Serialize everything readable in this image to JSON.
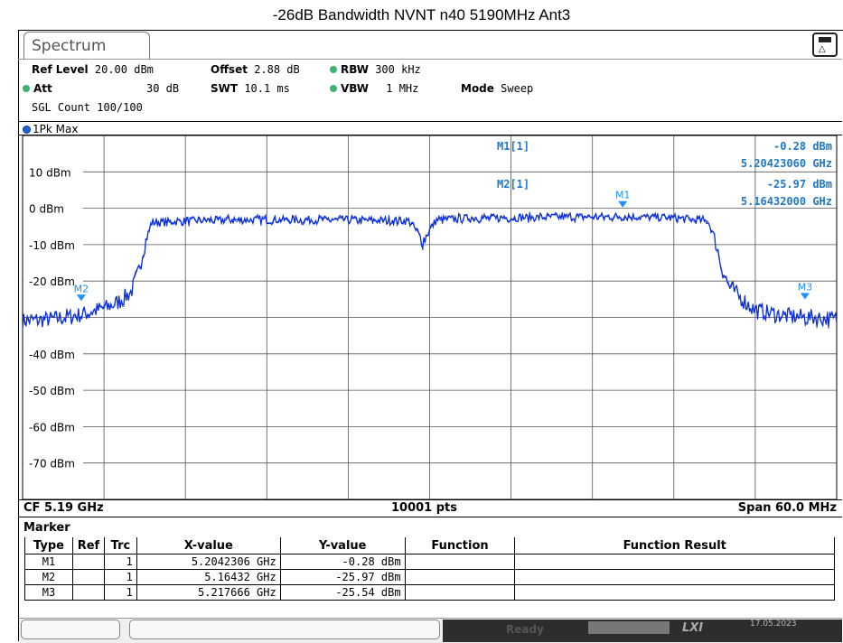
{
  "title": "-26dB Bandwidth NVNT n40 5190MHz Ant3",
  "tab": {
    "label": "Spectrum"
  },
  "settings": {
    "ref_level_label": "Ref Level",
    "ref_level_value": "20.00 dBm",
    "offset_label": "Offset",
    "offset_value": "2.88 dB",
    "rbw_label": "RBW",
    "rbw_value": "300 kHz",
    "att_label": "Att",
    "att_value": "30 dB",
    "swt_label": "SWT",
    "swt_value": "10.1 ms",
    "vbw_label": "VBW",
    "vbw_value": "1 MHz",
    "mode_label": "Mode",
    "mode_value": "Sweep",
    "sgl_count": "SGL Count 100/100"
  },
  "trace_label": "1Pk Max",
  "marker_readout": {
    "m1_label": "M1[1]",
    "m1_level": "-0.28 dBm",
    "m1_freq": "5.20423060 GHz",
    "m2_label": "M2[1]",
    "m2_level": "-25.97 dBm",
    "m2_freq": "5.16432000 GHz"
  },
  "footer": {
    "cf": "CF 5.19 GHz",
    "pts": "10001 pts",
    "span": "Span 60.0 MHz"
  },
  "marker_table": {
    "title": "Marker",
    "headers": [
      "Type",
      "Ref",
      "Trc",
      "X-value",
      "Y-value",
      "Function",
      "Function Result"
    ],
    "rows": [
      [
        "M1",
        "",
        "1",
        "5.2042306 GHz",
        "-0.28 dBm",
        "",
        ""
      ],
      [
        "M2",
        "",
        "1",
        "5.16432 GHz",
        "-25.97 dBm",
        "",
        ""
      ],
      [
        "M3",
        "",
        "1",
        "5.217666 GHz",
        "-25.54 dBm",
        "",
        ""
      ]
    ]
  },
  "statusbar": {
    "ready": "Ready",
    "lxi": "LXI",
    "date": "17.05.2023"
  },
  "colors": {
    "trace": "#0a2ee0",
    "marker": "#1e90ff",
    "readout": "#1e78c8"
  },
  "chart_data": {
    "type": "line",
    "x_range_ghz": [
      5.16,
      5.22
    ],
    "ylim": [
      -80,
      20
    ],
    "yticks": [
      {
        "value": 10,
        "label": "10 dBm"
      },
      {
        "value": 0,
        "label": "0 dBm"
      },
      {
        "value": -10,
        "label": "-10 dBm"
      },
      {
        "value": -20,
        "label": "-20 dBm"
      },
      {
        "value": -40,
        "label": "-40 dBm"
      },
      {
        "value": -50,
        "label": "-50 dBm"
      },
      {
        "value": -60,
        "label": "-60 dBm"
      },
      {
        "value": -70,
        "label": "-70 dBm"
      }
    ],
    "grid": true,
    "series": [
      {
        "x": [
          5.16,
          5.162,
          5.164,
          5.166,
          5.167,
          5.168,
          5.1685,
          5.169,
          5.1695,
          5.172,
          5.176,
          5.18,
          5.184,
          5.1885,
          5.189,
          5.1895,
          5.19,
          5.1905,
          5.192,
          5.196,
          5.2,
          5.204,
          5.208,
          5.2105,
          5.211,
          5.2115,
          5.212,
          5.213,
          5.214,
          5.216,
          5.218,
          5.22
        ],
        "y": [
          -31,
          -30.5,
          -29.5,
          -27.5,
          -26,
          -23,
          -18,
          -10,
          -4,
          -3.5,
          -3.2,
          -3.2,
          -3.2,
          -3.5,
          -6,
          -9,
          -6,
          -3.2,
          -2.8,
          -2.6,
          -2.4,
          -2.3,
          -2.6,
          -3.5,
          -8,
          -16,
          -21,
          -25,
          -28,
          -29.5,
          -30,
          -30.5
        ]
      }
    ],
    "markers": [
      {
        "label": "M1",
        "x": 5.2042306,
        "y": -0.28
      },
      {
        "label": "M2",
        "x": 5.16432,
        "y": -25.97
      },
      {
        "label": "M3",
        "x": 5.217666,
        "y": -25.54
      }
    ]
  }
}
